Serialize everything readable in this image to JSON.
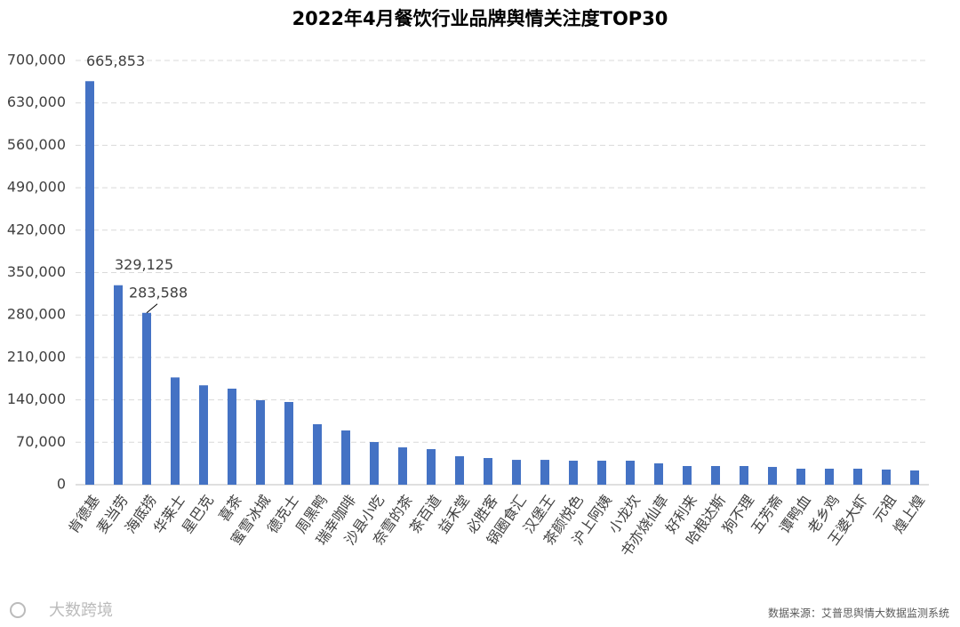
{
  "chart_data": {
    "type": "bar",
    "title": "2022年4月餐饮行业品牌舆情关注度TOP30",
    "categories": [
      "肯德基",
      "麦当劳",
      "海底捞",
      "华莱士",
      "星巴克",
      "喜茶",
      "蜜雪冰城",
      "德克士",
      "周黑鸭",
      "瑞幸咖啡",
      "沙县小吃",
      "奈雪的茶",
      "茶百道",
      "益禾堂",
      "必胜客",
      "锅圈食汇",
      "汉堡王",
      "茶颜悦色",
      "沪上阿姨",
      "小龙坎",
      "书亦烧仙草",
      "好利来",
      "哈根达斯",
      "狗不理",
      "五芳斋",
      "谭鸭血",
      "老乡鸡",
      "王婆大虾",
      "元祖",
      "煌上煌"
    ],
    "values": [
      665853,
      329125,
      283588,
      177000,
      164000,
      158500,
      139400,
      136500,
      99800,
      89500,
      70400,
      61600,
      58700,
      47000,
      44000,
      41000,
      41000,
      39600,
      39600,
      39600,
      35200,
      30800,
      30800,
      30800,
      29300,
      26400,
      26400,
      26400,
      25000,
      23500
    ],
    "value_labels": [
      "665,853",
      "329,125",
      "283,588",
      null,
      null,
      null,
      null,
      null,
      null,
      null,
      null,
      null,
      null,
      null,
      null,
      null,
      null,
      null,
      null,
      null,
      null,
      null,
      null,
      null,
      null,
      null,
      null,
      null,
      null,
      null
    ],
    "color": "#4472c4",
    "ylim": [
      0,
      700000
    ],
    "yticks": [
      0,
      {
        "value": 70000,
        "label": "70,000"
      },
      {
        "value": 140000,
        "label": "140,000"
      },
      {
        "value": 210000,
        "label": "210,000"
      },
      {
        "value": 280000,
        "label": "280,000"
      },
      {
        "value": 350000,
        "label": "350,000"
      },
      {
        "value": 420000,
        "label": "420,000"
      },
      {
        "value": 490000,
        "label": "490,000"
      },
      {
        "value": 560000,
        "label": "560,000"
      },
      {
        "value": 630000,
        "label": "630,000"
      },
      {
        "value": 700000,
        "label": "700,000"
      }
    ],
    "grid": true,
    "source": "数据来源：艾普思舆情大数据监测系统",
    "logo": "大数跨境"
  }
}
